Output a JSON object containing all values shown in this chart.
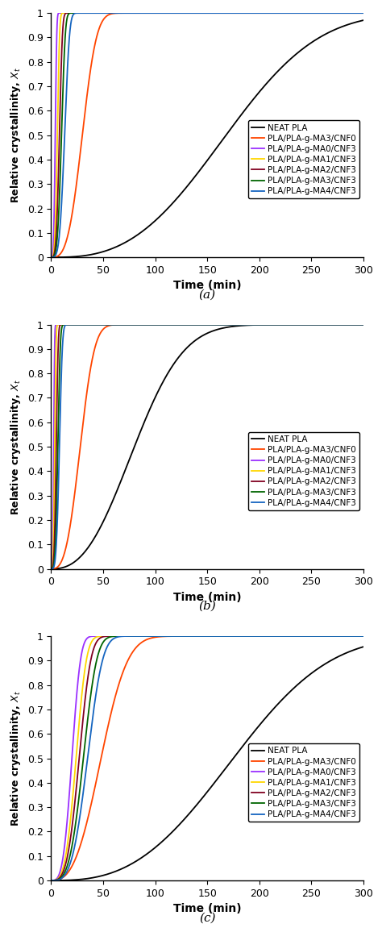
{
  "subplots": [
    {
      "label": "(a)",
      "series": [
        {
          "name": "NEAT PLA",
          "color": "#000000",
          "t_half": 168,
          "n": 2.8
        },
        {
          "name": "PLA/PLA-g-MA3/CNF0",
          "color": "#FF4500",
          "t_half": 30,
          "n": 3.2
        },
        {
          "name": "PLA/PLA-g-MA0/CNF3",
          "color": "#9B30FF",
          "t_half": 4,
          "n": 4.0
        },
        {
          "name": "PLA/PLA-g-MA1/CNF3",
          "color": "#FFD700",
          "t_half": 6,
          "n": 4.0
        },
        {
          "name": "PLA/PLA-g-MA2/CNF3",
          "color": "#800020",
          "t_half": 8,
          "n": 4.0
        },
        {
          "name": "PLA/PLA-g-MA3/CNF3",
          "color": "#006400",
          "t_half": 10,
          "n": 4.0
        },
        {
          "name": "PLA/PLA-g-MA4/CNF3",
          "color": "#1565C0",
          "t_half": 13,
          "n": 4.0
        }
      ]
    },
    {
      "label": "(b)",
      "series": [
        {
          "name": "NEAT PLA",
          "color": "#000000",
          "t_half": 80,
          "n": 2.5
        },
        {
          "name": "PLA/PLA-g-MA3/CNF0",
          "color": "#FF4500",
          "t_half": 28,
          "n": 3.0
        },
        {
          "name": "PLA/PLA-g-MA0/CNF3",
          "color": "#9B30FF",
          "t_half": 2.5,
          "n": 4.0
        },
        {
          "name": "PLA/PLA-g-MA1/CNF3",
          "color": "#FFD700",
          "t_half": 3.5,
          "n": 4.0
        },
        {
          "name": "PLA/PLA-g-MA2/CNF3",
          "color": "#800020",
          "t_half": 5.0,
          "n": 4.0
        },
        {
          "name": "PLA/PLA-g-MA3/CNF3",
          "color": "#006400",
          "t_half": 6.5,
          "n": 4.0
        },
        {
          "name": "PLA/PLA-g-MA4/CNF3",
          "color": "#1565C0",
          "t_half": 8.0,
          "n": 4.0
        }
      ]
    },
    {
      "label": "(c)",
      "series": [
        {
          "name": "NEAT PLA",
          "color": "#000000",
          "t_half": 175,
          "n": 2.8
        },
        {
          "name": "PLA/PLA-g-MA3/CNF0",
          "color": "#FF4500",
          "t_half": 48,
          "n": 2.8
        },
        {
          "name": "PLA/PLA-g-MA0/CNF3",
          "color": "#9B30FF",
          "t_half": 20,
          "n": 3.5
        },
        {
          "name": "PLA/PLA-g-MA1/CNF3",
          "color": "#FFD700",
          "t_half": 24,
          "n": 3.5
        },
        {
          "name": "PLA/PLA-g-MA2/CNF3",
          "color": "#800020",
          "t_half": 27,
          "n": 3.5
        },
        {
          "name": "PLA/PLA-g-MA3/CNF3",
          "color": "#006400",
          "t_half": 31,
          "n": 3.5
        },
        {
          "name": "PLA/PLA-g-MA4/CNF3",
          "color": "#1565C0",
          "t_half": 35,
          "n": 3.5
        }
      ]
    }
  ],
  "xlabel": "Time (min)",
  "xlim": [
    0,
    300
  ],
  "ylim": [
    0,
    1
  ],
  "xticks": [
    0,
    50,
    100,
    150,
    200,
    250,
    300
  ],
  "yticks": [
    0,
    0.1,
    0.2,
    0.3,
    0.4,
    0.5,
    0.6,
    0.7,
    0.8,
    0.9,
    1
  ],
  "ytick_labels": [
    "0",
    "0.1",
    "0.2",
    "0.3",
    "0.4",
    "0.5",
    "0.6",
    "0.7",
    "0.8",
    "0.9",
    "1"
  ]
}
